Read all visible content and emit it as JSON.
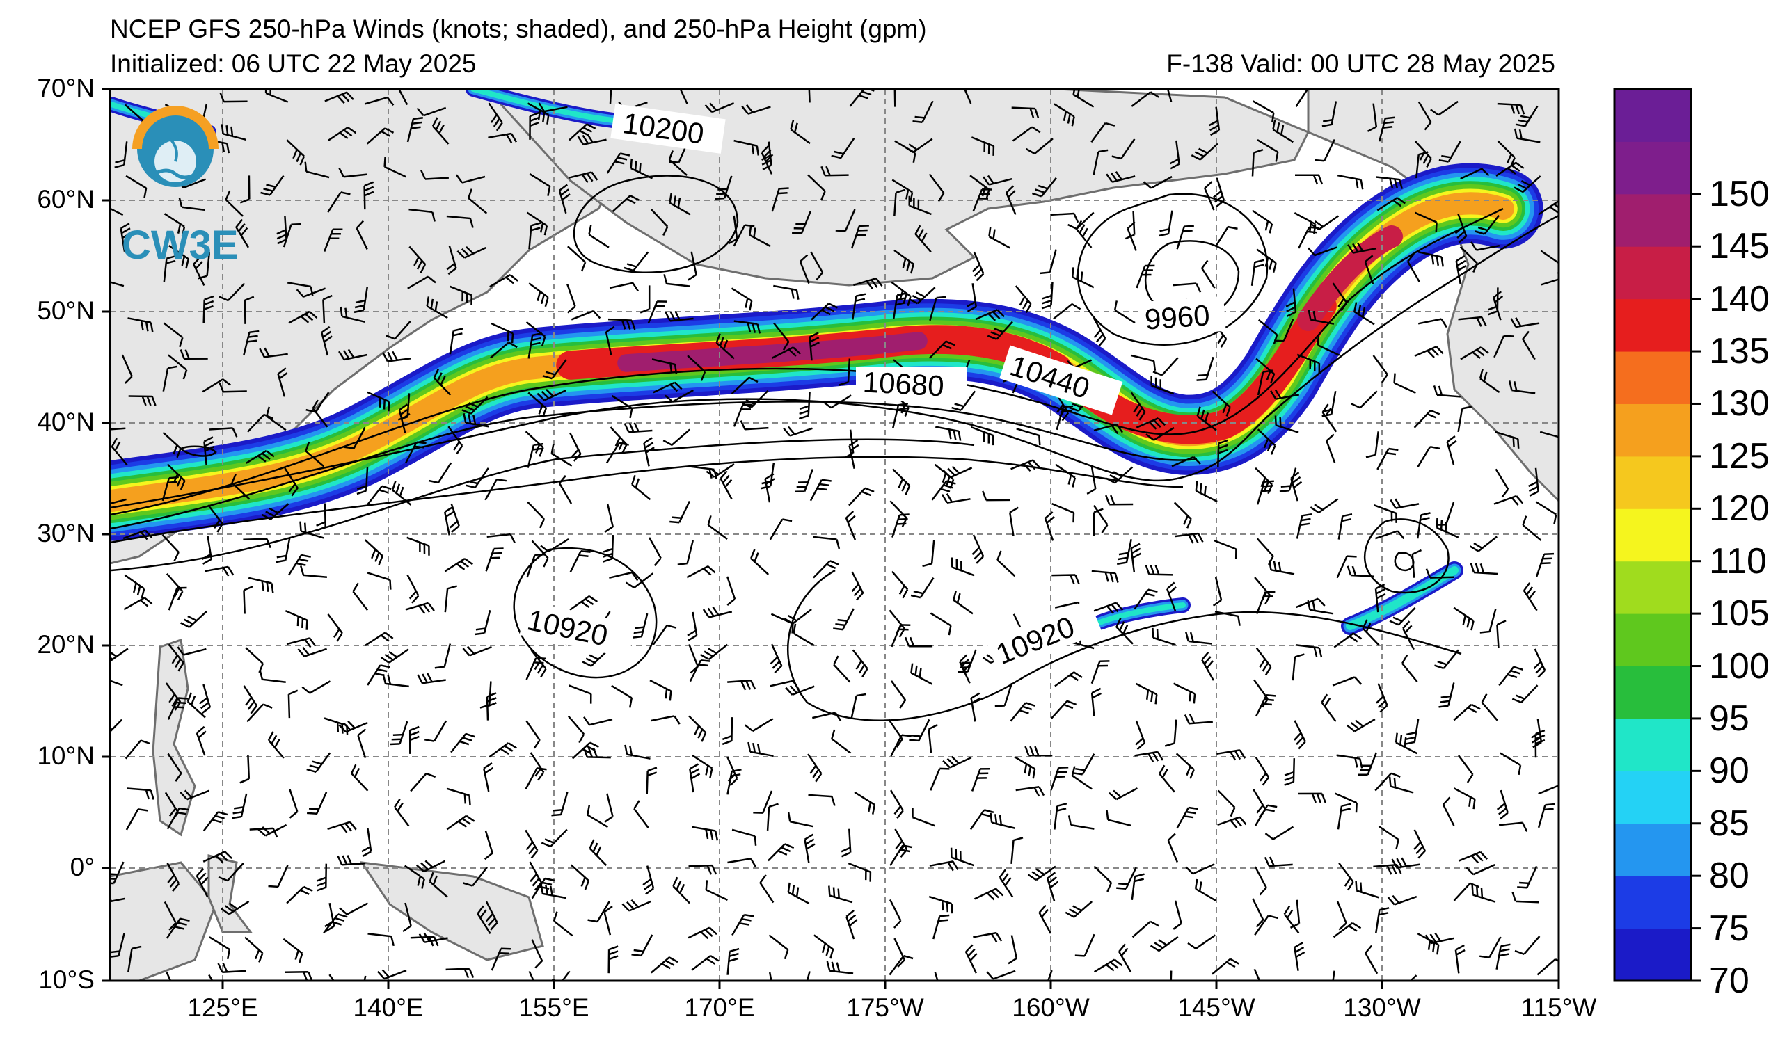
{
  "title": "NCEP GFS 250-hPa Winds (knots; shaded), and 250-hPa Height (gpm)",
  "initialized": "Initialized: 06 UTC 22 May 2025",
  "valid": "F-138  Valid: 00 UTC 28 May 2025",
  "logo_text": "CW3E",
  "lat_labels": [
    "70°N",
    "60°N",
    "50°N",
    "40°N",
    "30°N",
    "20°N",
    "10°N",
    "0°",
    "10°S"
  ],
  "lon_labels": [
    "125°E",
    "140°E",
    "155°E",
    "170°E",
    "175°W",
    "160°W",
    "145°W",
    "130°W",
    "115°W"
  ],
  "colorbar": {
    "levels": [
      "70",
      "75",
      "80",
      "85",
      "90",
      "95",
      "100",
      "105",
      "110",
      "120",
      "125",
      "130",
      "135",
      "140",
      "145",
      "150"
    ],
    "colors": [
      "#1b1bc8",
      "#1c3ce6",
      "#2496f0",
      "#24d2f5",
      "#20e6c8",
      "#28be3c",
      "#5fc81e",
      "#a0dc1e",
      "#f5f51e",
      "#f5c81e",
      "#f5a01e",
      "#f56e1e",
      "#e61e1e",
      "#c81e46",
      "#a01e6e",
      "#7e1e8c"
    ],
    "top_color": "#6b1e96"
  },
  "contour_labels": [
    "10200",
    "10680",
    "10440",
    "9960",
    "10920",
    "10920"
  ],
  "land_color": "#e6e6e6"
}
